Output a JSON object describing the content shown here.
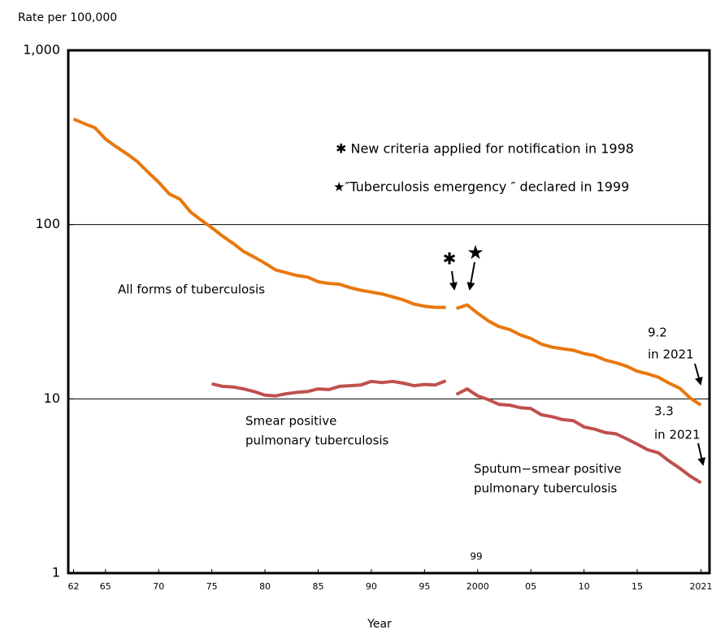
{
  "chart_data": {
    "type": "line",
    "y_label": "Rate per 100,000",
    "x_label": "Year",
    "log_y": true,
    "grid": true,
    "xlim": [
      1961.5,
      2021.8
    ],
    "ylim": [
      1,
      1000
    ],
    "xticks": [
      {
        "value": 1962,
        "label": "62"
      },
      {
        "value": 1965,
        "label": "65"
      },
      {
        "value": 1970,
        "label": "70"
      },
      {
        "value": 1975,
        "label": "75"
      },
      {
        "value": 1980,
        "label": "80"
      },
      {
        "value": 1985,
        "label": "85"
      },
      {
        "value": 1990,
        "label": "90"
      },
      {
        "value": 1995,
        "label": "95"
      },
      2000,
      {
        "value": 2005,
        "label": "05"
      },
      {
        "value": 2010,
        "label": "10"
      },
      {
        "value": 2015,
        "label": "15"
      },
      2021
    ],
    "yticks": [
      1,
      10,
      100,
      {
        "value": 1000,
        "label": "1,000"
      }
    ],
    "series": [
      {
        "label": [
          "All forms of tuberculosis"
        ],
        "color": "#e8780e",
        "x": [
          1962,
          1963,
          1964,
          1965,
          1966,
          1967,
          1968,
          1969,
          1970,
          1971,
          1972,
          1973,
          1974,
          1975,
          1976,
          1977,
          1978,
          1979,
          1980,
          1981,
          1982,
          1983,
          1984,
          1985,
          1986,
          1987,
          1988,
          1989,
          1990,
          1991,
          1992,
          1993,
          1994,
          1995,
          1996,
          1997
        ],
        "values": [
          403,
          380,
          360,
          310,
          280,
          255,
          230,
          200,
          175,
          150,
          140,
          118,
          106,
          96,
          86,
          78,
          70,
          65,
          60,
          55,
          53,
          51,
          50,
          47,
          46,
          45.5,
          43.5,
          42,
          41,
          40,
          38.5,
          37,
          35,
          34,
          33.5,
          33.5
        ]
      },
      {
        "color": "#e8780e",
        "x": [
          1998,
          1999,
          2000,
          2001,
          2002,
          2003,
          2004,
          2005,
          2006,
          2007,
          2008,
          2009,
          2010,
          2011,
          2012,
          2013,
          2014,
          2015,
          2016,
          2017,
          2018,
          2019,
          2020,
          2021
        ],
        "values": [
          33,
          34.6,
          31,
          28,
          26,
          25,
          23.3,
          22.2,
          20.6,
          19.8,
          19.4,
          19,
          18.2,
          17.7,
          16.7,
          16.1,
          15.4,
          14.4,
          13.9,
          13.3,
          12.3,
          11.5,
          10.1,
          9.2
        ]
      },
      {
        "label": [
          "Smear positive",
          "pulmonary tuberculosis"
        ],
        "color": "#c0504d",
        "x": [
          1975,
          1976,
          1977,
          1978,
          1979,
          1980,
          1981,
          1982,
          1983,
          1984,
          1985,
          1986,
          1987,
          1988,
          1989,
          1990,
          1991,
          1992,
          1993,
          1994,
          1995,
          1996,
          1997
        ],
        "values": [
          12.2,
          11.8,
          11.7,
          11.4,
          11,
          10.5,
          10.4,
          10.7,
          10.9,
          11,
          11.4,
          11.3,
          11.8,
          11.9,
          12,
          12.6,
          12.4,
          12.6,
          12.3,
          11.9,
          12.1,
          12,
          12.7
        ]
      },
      {
        "label": [
          "Sputum−smear positive",
          "pulmonary tuberculosis"
        ],
        "color": "#c0504d",
        "x": [
          1998,
          1999,
          2000,
          2001,
          2002,
          2003,
          2004,
          2005,
          2006,
          2007,
          2008,
          2009,
          2010,
          2011,
          2012,
          2013,
          2014,
          2015,
          2016,
          2017,
          2018,
          2019,
          2020,
          2021
        ],
        "values": [
          10.6,
          11.4,
          10.4,
          9.9,
          9.3,
          9.2,
          8.9,
          8.8,
          8.1,
          7.9,
          7.6,
          7.5,
          6.9,
          6.7,
          6.4,
          6.3,
          5.9,
          5.5,
          5.1,
          4.9,
          4.4,
          4,
          3.6,
          3.3
        ]
      }
    ],
    "annotations": [
      {
        "text": "✱ New criteria applied for notification in 1998"
      },
      {
        "text": "★″Tuberculosis emergency ″ declared in 1999"
      },
      {
        "text": "✱"
      },
      {
        "text": "★"
      },
      {
        "text": "9.2"
      },
      {
        "text": "in 2021"
      },
      {
        "text": "3.3"
      },
      {
        "text": "in 2021"
      },
      {
        "text": "99"
      }
    ]
  }
}
